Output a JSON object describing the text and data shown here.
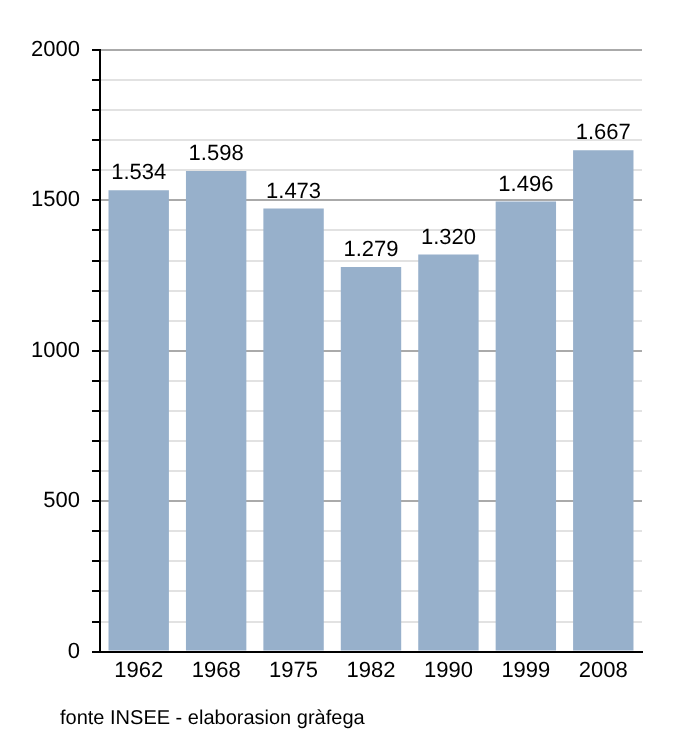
{
  "chart_data": {
    "type": "bar",
    "categories": [
      "1962",
      "1968",
      "1975",
      "1982",
      "1990",
      "1999",
      "2008"
    ],
    "values": [
      1534,
      1598,
      1473,
      1279,
      1320,
      1496,
      1667
    ],
    "value_labels": [
      "1.534",
      "1.598",
      "1.473",
      "1.279",
      "1.320",
      "1.496",
      "1.667"
    ],
    "color": "#97b0cb",
    "ylim": [
      0,
      2000
    ],
    "yticks": [
      0,
      {
        "value": 100,
        "label": null
      },
      {
        "value": 200,
        "label": null
      },
      {
        "value": 300,
        "label": null
      },
      {
        "value": 400,
        "label": null
      },
      500,
      {
        "value": 600,
        "label": null
      },
      {
        "value": 700,
        "label": null
      },
      {
        "value": 800,
        "label": null
      },
      {
        "value": 900,
        "label": null
      },
      1000,
      {
        "value": 1100,
        "label": null
      },
      {
        "value": 1200,
        "label": null
      },
      {
        "value": 1300,
        "label": null
      },
      {
        "value": 1400,
        "label": null
      },
      1500,
      {
        "value": 1600,
        "label": null
      },
      {
        "value": 1700,
        "label": null
      },
      {
        "value": 1800,
        "label": null
      },
      {
        "value": 1900,
        "label": null
      },
      2000
    ],
    "grid": "y",
    "legend": false,
    "annotations": [
      "fonte INSEE - elaborasion gràfega"
    ]
  }
}
